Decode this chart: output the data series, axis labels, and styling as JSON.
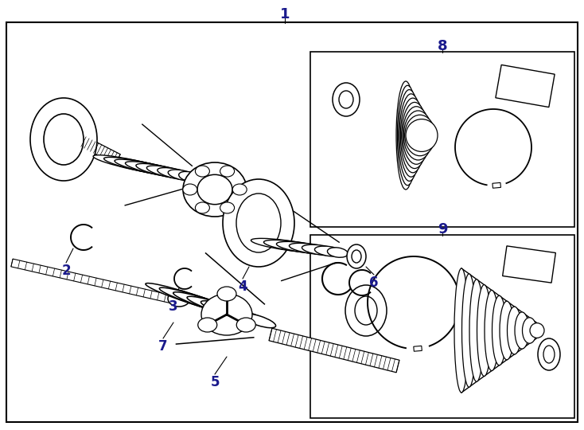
{
  "bg_color": "#ffffff",
  "line_color": "#000000",
  "label_color": "#1a1a8c",
  "figsize": [
    7.34,
    5.4
  ],
  "dpi": 100
}
